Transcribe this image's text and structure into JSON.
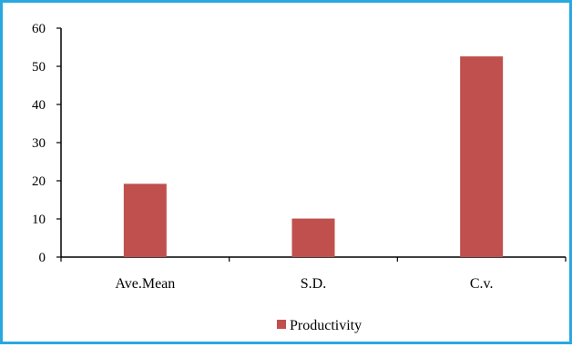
{
  "chart_data": {
    "type": "bar",
    "title": "",
    "xlabel": "",
    "ylabel": "",
    "categories": [
      "Ave.Mean",
      "S.D.",
      "C.v."
    ],
    "series": [
      {
        "name": "Productivity",
        "values": [
          19.2,
          10.1,
          52.6
        ],
        "color": "#c0504d"
      }
    ],
    "ylim": [
      0,
      60
    ],
    "yticks": [
      "0",
      "10",
      "20",
      "30",
      "40",
      "50",
      "60"
    ],
    "grid": false,
    "legend_position": "bottom"
  },
  "frame_color": "#29a8e0"
}
